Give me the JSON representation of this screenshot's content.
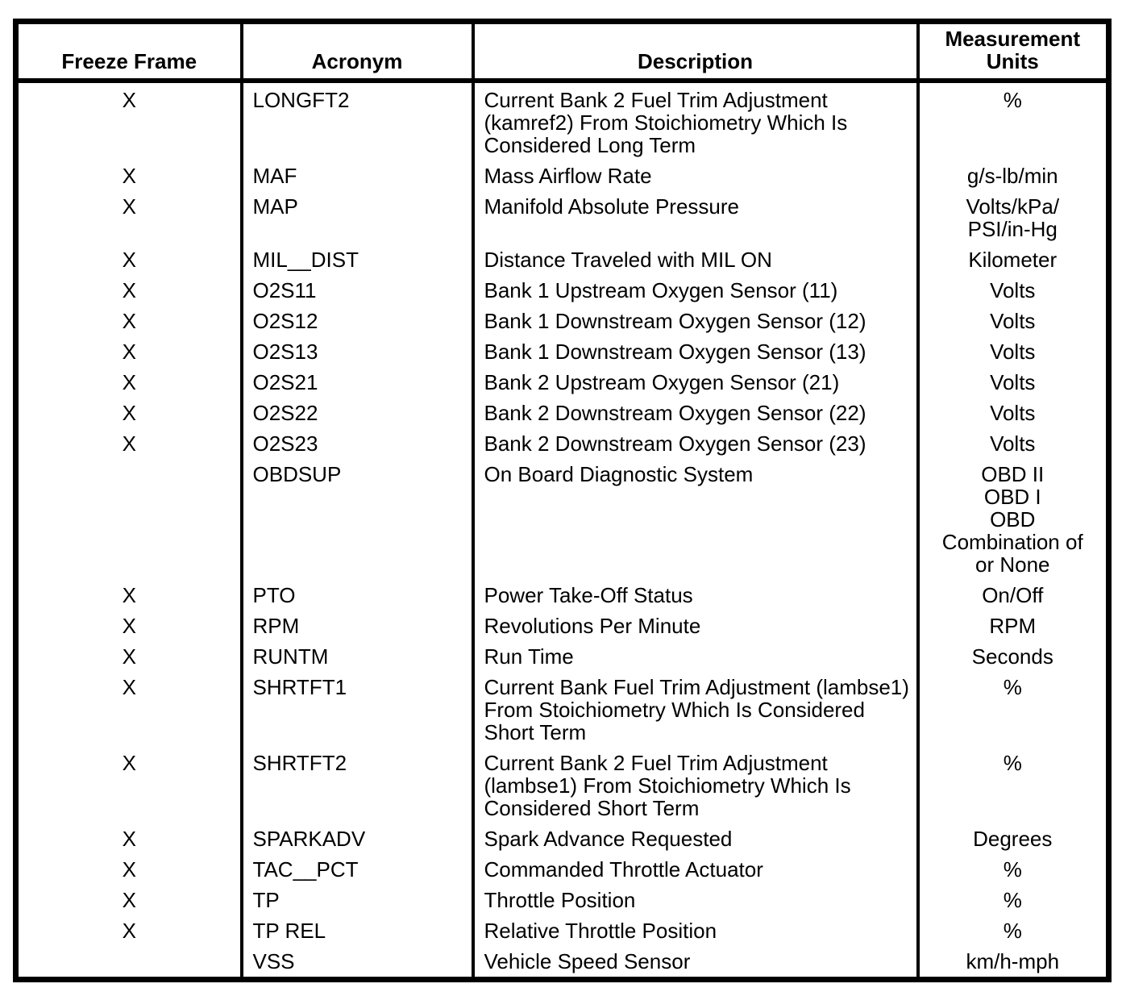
{
  "colors": {
    "text": "#000000",
    "border": "#000000",
    "background": "#ffffff"
  },
  "table": {
    "headers": {
      "freeze_frame": "Freeze Frame",
      "acronym": "Acronym",
      "description": "Description",
      "units": [
        "Measurement",
        "Units"
      ]
    },
    "rows": [
      {
        "freeze_frame": "X",
        "acronym": "LONGFT2",
        "description": "Current Bank 2 Fuel Trim Adjustment (kamref2) From Stoichiometry Which Is Considered Long Term",
        "units": "%"
      },
      {
        "freeze_frame": "X",
        "acronym": "MAF",
        "description": "Mass Airflow Rate",
        "units": "g/s-lb/min"
      },
      {
        "freeze_frame": "X",
        "acronym": "MAP",
        "description": "Manifold Absolute Pressure",
        "units": [
          "Volts/kPa/",
          "PSI/in-Hg"
        ]
      },
      {
        "freeze_frame": "X",
        "acronym": "MIL__DIST",
        "description": "Distance Traveled with MIL ON",
        "units": "Kilometer"
      },
      {
        "freeze_frame": "X",
        "acronym": "O2S11",
        "description": "Bank 1 Upstream Oxygen Sensor (11)",
        "units": "Volts"
      },
      {
        "freeze_frame": "X",
        "acronym": "O2S12",
        "description": "Bank 1 Downstream Oxygen Sensor (12)",
        "units": "Volts"
      },
      {
        "freeze_frame": "X",
        "acronym": "O2S13",
        "description": "Bank 1 Downstream Oxygen Sensor (13)",
        "units": "Volts"
      },
      {
        "freeze_frame": "X",
        "acronym": "O2S21",
        "description": "Bank 2 Upstream Oxygen Sensor (21)",
        "units": "Volts"
      },
      {
        "freeze_frame": "X",
        "acronym": "O2S22",
        "description": "Bank 2 Downstream Oxygen Sensor (22)",
        "units": "Volts"
      },
      {
        "freeze_frame": "X",
        "acronym": "O2S23",
        "description": "Bank 2 Downstream Oxygen Sensor (23)",
        "units": "Volts"
      },
      {
        "freeze_frame": "",
        "acronym": "OBDSUP",
        "description": "On Board Diagnostic System",
        "units": [
          "OBD II",
          "OBD I",
          "OBD",
          "Combination of",
          "or None"
        ]
      },
      {
        "freeze_frame": "X",
        "acronym": "PTO",
        "description": "Power Take-Off Status",
        "units": "On/Off"
      },
      {
        "freeze_frame": "X",
        "acronym": "RPM",
        "description": "Revolutions Per Minute",
        "units": "RPM"
      },
      {
        "freeze_frame": "X",
        "acronym": "RUNTM",
        "description": "Run Time",
        "units": "Seconds"
      },
      {
        "freeze_frame": "X",
        "acronym": "SHRTFT1",
        "description": "Current Bank Fuel Trim Adjustment (lambse1) From Stoichiometry Which Is Considered Short Term",
        "units": "%"
      },
      {
        "freeze_frame": "X",
        "acronym": "SHRTFT2",
        "description": "Current Bank 2 Fuel Trim Adjustment (lambse1) From Stoichiometry Which Is Considered Short Term",
        "units": "%"
      },
      {
        "freeze_frame": "X",
        "acronym": "SPARKADV",
        "description": "Spark Advance Requested",
        "units": "Degrees"
      },
      {
        "freeze_frame": "X",
        "acronym": "TAC__PCT",
        "description": "Commanded Throttle Actuator",
        "units": "%"
      },
      {
        "freeze_frame": "X",
        "acronym": "TP",
        "description": "Throttle Position",
        "units": "%"
      },
      {
        "freeze_frame": "X",
        "acronym": "TP REL",
        "description": "Relative Throttle Position",
        "units": "%"
      },
      {
        "freeze_frame": "",
        "acronym": "VSS",
        "description": "Vehicle Speed Sensor",
        "units": "km/h-mph"
      }
    ]
  }
}
